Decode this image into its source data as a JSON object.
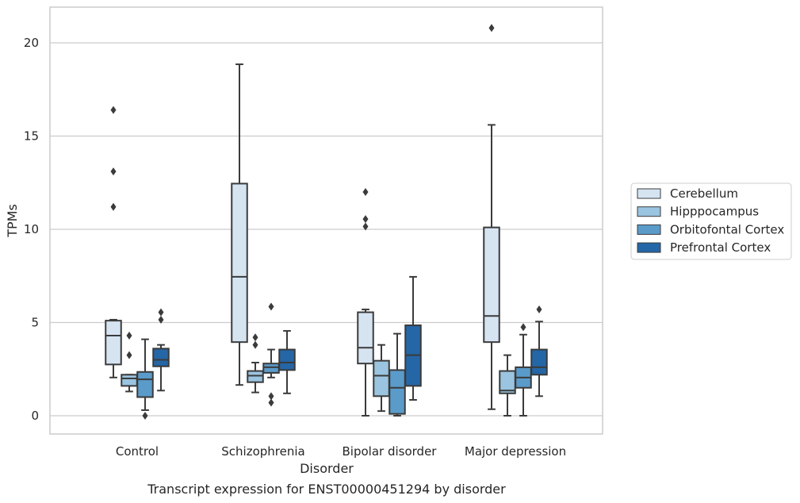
{
  "chart_data": {
    "type": "box",
    "caption": "Transcript expression for ENST00000451294 by disorder",
    "xlabel": "Disorder",
    "ylabel": "TPMs",
    "ylim": [
      -1,
      21.8
    ],
    "yticks": [
      0,
      5,
      10,
      15,
      20
    ],
    "grid": "horizontal",
    "legend_position": "right",
    "categories": [
      "Control",
      "Schizophrenia",
      "Bipolar disorder",
      "Major depression"
    ],
    "series": [
      {
        "name": "Cerebellum",
        "color": "#d6e4f2",
        "boxes": [
          {
            "whislo": 2.05,
            "q1": 2.75,
            "med": 4.3,
            "q3": 5.1,
            "whishi": 5.15,
            "fliers": [
              11.2,
              13.1,
              16.4
            ]
          },
          {
            "whislo": 1.65,
            "q1": 3.95,
            "med": 7.45,
            "q3": 12.45,
            "whishi": 18.85,
            "fliers": []
          },
          {
            "whislo": 0.0,
            "q1": 2.8,
            "med": 3.65,
            "q3": 5.55,
            "whishi": 5.7,
            "fliers": [
              10.15,
              10.55,
              12.0
            ]
          },
          {
            "whislo": 0.35,
            "q1": 3.95,
            "med": 5.35,
            "q3": 10.1,
            "whishi": 15.6,
            "fliers": [
              20.8
            ]
          }
        ]
      },
      {
        "name": "Hipppocampus",
        "color": "#9ac4e0",
        "boxes": [
          {
            "whislo": 1.3,
            "q1": 1.6,
            "med": 2.0,
            "q3": 2.2,
            "whishi": 2.2,
            "fliers": [
              3.25,
              4.3
            ]
          },
          {
            "whislo": 1.25,
            "q1": 1.8,
            "med": 2.15,
            "q3": 2.4,
            "whishi": 2.85,
            "fliers": [
              3.8,
              4.2
            ]
          },
          {
            "whislo": 0.25,
            "q1": 1.05,
            "med": 2.15,
            "q3": 2.95,
            "whishi": 3.8,
            "fliers": []
          },
          {
            "whislo": 0.0,
            "q1": 1.2,
            "med": 1.35,
            "q3": 2.4,
            "whishi": 3.25,
            "fliers": []
          }
        ]
      },
      {
        "name": "Orbitofontal Cortex",
        "color": "#5a9bc9",
        "boxes": [
          {
            "whislo": 0.3,
            "q1": 1.0,
            "med": 1.95,
            "q3": 2.35,
            "whishi": 4.1,
            "fliers": [
              0.0
            ]
          },
          {
            "whislo": 2.05,
            "q1": 2.3,
            "med": 2.6,
            "q3": 2.8,
            "whishi": 3.55,
            "fliers": [
              0.7,
              1.05,
              5.85
            ]
          },
          {
            "whislo": 0.0,
            "q1": 0.1,
            "med": 1.5,
            "q3": 2.45,
            "whishi": 4.4,
            "fliers": []
          },
          {
            "whislo": 0.0,
            "q1": 1.5,
            "med": 2.05,
            "q3": 2.6,
            "whishi": 4.35,
            "fliers": [
              4.75
            ]
          }
        ]
      },
      {
        "name": "Prefrontal Cortex",
        "color": "#2566a6",
        "boxes": [
          {
            "whislo": 1.35,
            "q1": 2.65,
            "med": 3.0,
            "q3": 3.6,
            "whishi": 3.8,
            "fliers": [
              5.15,
              5.55
            ]
          },
          {
            "whislo": 1.2,
            "q1": 2.45,
            "med": 2.85,
            "q3": 3.55,
            "whishi": 4.55,
            "fliers": []
          },
          {
            "whislo": 0.85,
            "q1": 1.6,
            "med": 3.25,
            "q3": 4.85,
            "whishi": 7.45,
            "fliers": []
          },
          {
            "whislo": 1.05,
            "q1": 2.2,
            "med": 2.6,
            "q3": 3.55,
            "whishi": 5.05,
            "fliers": [
              5.7
            ]
          }
        ]
      }
    ]
  }
}
